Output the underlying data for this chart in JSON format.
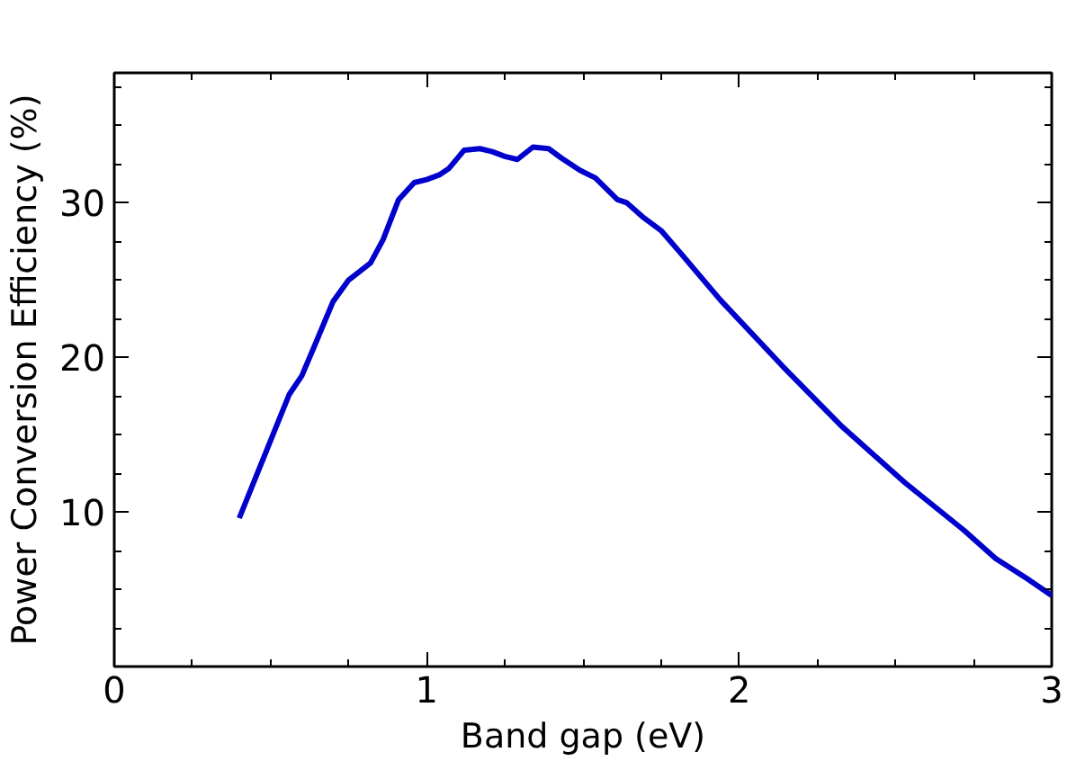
{
  "chart_data": {
    "type": "line",
    "xlabel": "Band gap (eV)",
    "ylabel": "Power Conversion Efficiency (%)",
    "xlim": [
      0,
      3
    ],
    "ylim": [
      0,
      38.4
    ],
    "xticks": [
      0,
      1,
      2,
      3
    ],
    "yticks": [
      10,
      20,
      30
    ],
    "grid": false,
    "series": [
      {
        "color": "#0000cc",
        "x": [
          0.4,
          0.46,
          0.51,
          0.56,
          0.6,
          0.64,
          0.7,
          0.75,
          0.82,
          0.86,
          0.91,
          0.96,
          1.0,
          1.04,
          1.07,
          1.12,
          1.17,
          1.21,
          1.25,
          1.29,
          1.34,
          1.39,
          1.43,
          1.49,
          1.54,
          1.61,
          1.64,
          1.69,
          1.75,
          1.81,
          1.94,
          2.14,
          2.33,
          2.53,
          2.72,
          2.82,
          2.92,
          3.0
        ],
        "values": [
          9.6,
          12.6,
          15.1,
          17.6,
          18.8,
          20.7,
          23.6,
          25.0,
          26.1,
          27.6,
          30.2,
          31.3,
          31.5,
          31.8,
          32.2,
          33.4,
          33.5,
          33.3,
          33.0,
          32.8,
          33.6,
          33.5,
          32.9,
          32.1,
          31.6,
          30.2,
          30.0,
          29.1,
          28.2,
          26.8,
          23.7,
          19.4,
          15.5,
          11.9,
          8.8,
          7.0,
          5.7,
          4.6
        ]
      }
    ]
  }
}
